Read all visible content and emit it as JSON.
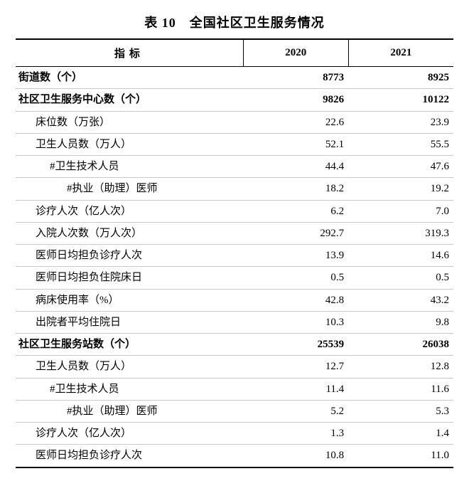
{
  "title": "表 10　全国社区卫生服务情况",
  "columns": [
    "指标",
    "2020",
    "2021"
  ],
  "col_widths_pct": [
    52,
    24,
    24
  ],
  "colors": {
    "text": "#000000",
    "background": "#ffffff",
    "row_border": "#c9c9c9",
    "outer_border": "#000000"
  },
  "font": {
    "family": "SimSun",
    "title_size_pt": 14,
    "body_size_pt": 11
  },
  "rows": [
    {
      "label": "街道数（个）",
      "v2020": "8773",
      "v2021": "8925",
      "bold": true,
      "indent": 0
    },
    {
      "label": "社区卫生服务中心数（个）",
      "v2020": "9826",
      "v2021": "10122",
      "bold": true,
      "indent": 0
    },
    {
      "label": "床位数（万张）",
      "v2020": "22.6",
      "v2021": "23.9",
      "bold": false,
      "indent": 1
    },
    {
      "label": "卫生人员数（万人）",
      "v2020": "52.1",
      "v2021": "55.5",
      "bold": false,
      "indent": 1
    },
    {
      "label": "#卫生技术人员",
      "v2020": "44.4",
      "v2021": "47.6",
      "bold": false,
      "indent": 2
    },
    {
      "label": "#执业（助理）医师",
      "v2020": "18.2",
      "v2021": "19.2",
      "bold": false,
      "indent": 3
    },
    {
      "label": "诊疗人次（亿人次）",
      "v2020": "6.2",
      "v2021": "7.0",
      "bold": false,
      "indent": 1
    },
    {
      "label": "入院人次数（万人次）",
      "v2020": "292.7",
      "v2021": "319.3",
      "bold": false,
      "indent": 1
    },
    {
      "label": "医师日均担负诊疗人次",
      "v2020": "13.9",
      "v2021": "14.6",
      "bold": false,
      "indent": 1
    },
    {
      "label": "医师日均担负住院床日",
      "v2020": "0.5",
      "v2021": "0.5",
      "bold": false,
      "indent": 1
    },
    {
      "label": "病床使用率（%）",
      "v2020": "42.8",
      "v2021": "43.2",
      "bold": false,
      "indent": 1
    },
    {
      "label": "出院者平均住院日",
      "v2020": "10.3",
      "v2021": "9.8",
      "bold": false,
      "indent": 1
    },
    {
      "label": "社区卫生服务站数（个）",
      "v2020": "25539",
      "v2021": "26038",
      "bold": true,
      "indent": 0
    },
    {
      "label": "卫生人员数（万人）",
      "v2020": "12.7",
      "v2021": "12.8",
      "bold": false,
      "indent": 1
    },
    {
      "label": "#卫生技术人员",
      "v2020": "11.4",
      "v2021": "11.6",
      "bold": false,
      "indent": 2
    },
    {
      "label": "#执业（助理）医师",
      "v2020": "5.2",
      "v2021": "5.3",
      "bold": false,
      "indent": 3
    },
    {
      "label": "诊疗人次（亿人次）",
      "v2020": "1.3",
      "v2021": "1.4",
      "bold": false,
      "indent": 1
    },
    {
      "label": "医师日均担负诊疗人次",
      "v2020": "10.8",
      "v2021": "11.0",
      "bold": false,
      "indent": 1
    }
  ]
}
